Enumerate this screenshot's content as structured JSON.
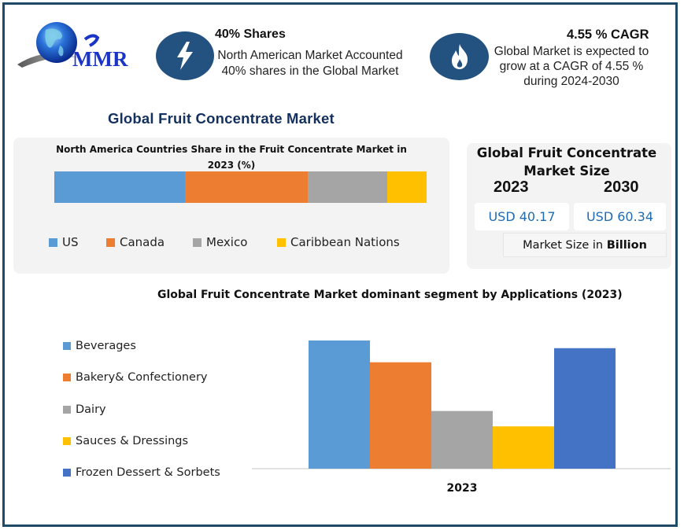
{
  "brand": {
    "logo_text": "MMR"
  },
  "stats": [
    {
      "icon": "lightning-icon",
      "title": "40% Shares",
      "line1": "North American Market Accounted",
      "line2": "40% shares in the Global Market"
    },
    {
      "icon": "flame-icon",
      "title": "4.55 % CAGR",
      "line1": "Global Market is expected to",
      "line2": "grow at a CAGR of 4.55 %",
      "line3": "during 2024-2030"
    }
  ],
  "main_title": "Global Fruit Concentrate Market",
  "market_size_card": {
    "title_line1": "Global Fruit Concentrate",
    "title_line2": "Market Size",
    "year_start": "2023",
    "year_end": "2030",
    "value_start": "USD 40.17",
    "value_end": "USD 60.34",
    "unit_prefix": "Market Size in ",
    "unit_bold": "Billion"
  },
  "colors": {
    "frame": "#1f4a68",
    "icon_circle": "#235280",
    "title_blue": "#14305e",
    "usd_blue": "#1f6bb0"
  },
  "chart_data": [
    {
      "type": "bar",
      "orientation": "horizontal-stacked",
      "title_line1": "North America Countries Share in the Fruit Concentrate Market in",
      "title_line2": "2023  (%)",
      "categories": [
        "2023"
      ],
      "series": [
        {
          "name": "US",
          "values": [
            35
          ],
          "color": "#5b9bd5"
        },
        {
          "name": "Canada",
          "values": [
            33
          ],
          "color": "#ed7d31"
        },
        {
          "name": "Mexico",
          "values": [
            21.5
          ],
          "color": "#a5a5a5"
        },
        {
          "name": "Caribbean Nations",
          "values": [
            10.5
          ],
          "color": "#ffc000"
        }
      ],
      "xlim": [
        0,
        100
      ],
      "legend": "bottom",
      "grid": false
    },
    {
      "type": "bar",
      "title": "Global Fruit Concentrate Market dominant segment by Applications (2023)",
      "categories": [
        "2023"
      ],
      "series": [
        {
          "name": "Beverages",
          "values": [
            100
          ],
          "color": "#5b9bd5"
        },
        {
          "name": "Bakery& Confectionery",
          "values": [
            83
          ],
          "color": "#ed7d31"
        },
        {
          "name": "Dairy",
          "values": [
            45
          ],
          "color": "#a5a5a5"
        },
        {
          "name": "Sauces & Dressings",
          "values": [
            33
          ],
          "color": "#ffc000"
        },
        {
          "name": "Frozen Dessert & Sorbets",
          "values": [
            94
          ],
          "color": "#4472c4"
        }
      ],
      "xlabel": "2023",
      "ylim": [
        0,
        100
      ],
      "y_axis_visible": false,
      "legend": "left",
      "grid": false
    }
  ]
}
